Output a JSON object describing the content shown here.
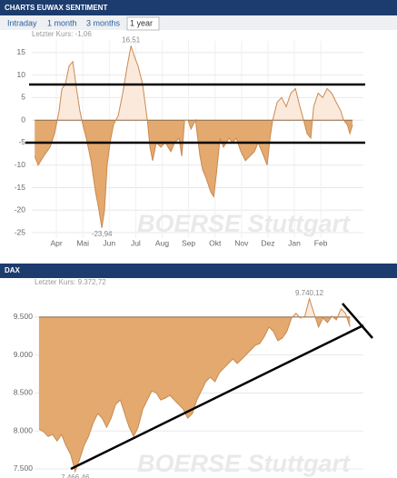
{
  "tabs": [
    "Intraday",
    "1 month",
    "3 months",
    "1 year"
  ],
  "active_tab": 3,
  "chart_data": [
    {
      "type": "area",
      "title": "CHARTS EUWAX SENTIMENT",
      "subtitle": "Letzter Kurs: -1,06",
      "watermark": "BOERSE Stuttgart",
      "color": "#c98a52",
      "fill_below": "#e3a96e",
      "fill_above": "#fbeadb",
      "fill_base": 0,
      "grid": true,
      "xlim": [
        3.07,
        15.61
      ],
      "ylim": [
        -26.2,
        17.6
      ],
      "yticks": [
        15,
        10,
        5,
        0,
        -5,
        -10,
        -15,
        -20,
        -25
      ],
      "xticks": [
        {
          "value": 4,
          "label": "Apr"
        },
        {
          "value": 5,
          "label": "Mai"
        },
        {
          "value": 6,
          "label": "Jun"
        },
        {
          "value": 7,
          "label": "Jul"
        },
        {
          "value": 8,
          "label": "Aug"
        },
        {
          "value": 9,
          "label": "Sep"
        },
        {
          "value": 10,
          "label": "Okt"
        },
        {
          "value": 11,
          "label": "Nov"
        },
        {
          "value": 12,
          "label": "Dez"
        },
        {
          "value": 13,
          "label": "Jan"
        },
        {
          "value": 14,
          "label": "Feb"
        }
      ],
      "max_label": "16,51",
      "min_label": "-23,94",
      "x": [
        3.18,
        3.31,
        3.52,
        3.76,
        3.93,
        4.1,
        4.21,
        4.34,
        4.48,
        4.62,
        4.76,
        4.89,
        5.0,
        5.13,
        5.31,
        5.48,
        5.58,
        5.72,
        5.82,
        5.92,
        6.03,
        6.16,
        6.34,
        6.51,
        6.68,
        6.82,
        6.96,
        7.09,
        7.26,
        7.44,
        7.54,
        7.64,
        7.78,
        7.95,
        8.12,
        8.33,
        8.47,
        8.64,
        8.74,
        8.85,
        8.98,
        9.09,
        9.26,
        9.43,
        9.53,
        9.67,
        9.84,
        9.95,
        10.05,
        10.19,
        10.32,
        10.53,
        10.67,
        10.8,
        10.98,
        11.15,
        11.32,
        11.49,
        11.63,
        11.84,
        11.97,
        12.08,
        12.18,
        12.35,
        12.52,
        12.69,
        12.87,
        13.04,
        13.21,
        13.35,
        13.48,
        13.62,
        13.73,
        13.9,
        14.07,
        14.24,
        14.41,
        14.58,
        14.76,
        14.86,
        15.0,
        15.1,
        15.2
      ],
      "values": [
        -8,
        -10,
        -8,
        -6,
        -3,
        2,
        7,
        8,
        12,
        13,
        7,
        2,
        -1,
        -4,
        -9,
        -16,
        -19,
        -23.94,
        -20,
        -10,
        -5,
        -1,
        1,
        6,
        12,
        16.51,
        14,
        12,
        8,
        0,
        -6,
        -9,
        -5,
        -6,
        -5,
        -7,
        -5,
        -4,
        -8,
        0,
        0,
        -2,
        0,
        -8,
        -11,
        -13,
        -16,
        -17,
        -12,
        -4,
        -6,
        -4,
        -5,
        -4,
        -7,
        -9,
        -8,
        -7,
        -5,
        -8,
        -10,
        -4,
        0,
        4,
        5,
        3,
        6,
        7,
        3,
        0,
        -3,
        -4,
        3,
        6,
        5,
        7,
        6,
        4,
        2,
        0,
        -1,
        -3,
        -1.06
      ]
    },
    {
      "type": "area",
      "title": "DAX",
      "subtitle": "Letzter Kurs: 9.372,72",
      "watermark": "BOERSE Stuttgart",
      "color": "#c98a52",
      "fill_below": "#e3a96e",
      "fill_above": "#fbeadb",
      "fill_base": 9500,
      "grid": true,
      "xlim": [
        3.07,
        15.61
      ],
      "ylim": [
        7380,
        9870
      ],
      "yticks": [
        {
          "value": 9500,
          "label": "9.500"
        },
        {
          "value": 9000,
          "label": "9.000"
        },
        {
          "value": 8500,
          "label": "8.500"
        },
        {
          "value": 8000,
          "label": "8.000"
        },
        {
          "value": 7500,
          "label": "7.500"
        }
      ],
      "max_label": "9.740,12",
      "min_label": "7.466,46",
      "x": [
        3.24,
        3.42,
        3.59,
        3.76,
        3.93,
        4.1,
        4.27,
        4.45,
        4.62,
        4.79,
        4.96,
        5.13,
        5.31,
        5.48,
        5.65,
        5.82,
        5.99,
        6.16,
        6.34,
        6.51,
        6.68,
        6.85,
        7.02,
        7.2,
        7.37,
        7.54,
        7.71,
        7.88,
        8.05,
        8.23,
        8.4,
        8.57,
        8.74,
        8.91,
        9.09,
        9.26,
        9.43,
        9.6,
        9.77,
        9.95,
        10.12,
        10.29,
        10.46,
        10.63,
        10.8,
        10.98,
        11.15,
        11.32,
        11.49,
        11.66,
        11.84,
        12.01,
        12.18,
        12.35,
        12.52,
        12.69,
        12.87,
        13.04,
        13.21,
        13.38,
        13.55,
        13.73,
        13.9,
        14.07,
        14.24,
        14.41,
        14.58,
        14.76,
        14.93,
        15.1
      ],
      "values": [
        8024,
        7988,
        7928,
        7952,
        7868,
        7952,
        7808,
        7688,
        7466.46,
        7628,
        7808,
        7928,
        8108,
        8228,
        8168,
        8048,
        8168,
        8348,
        8408,
        8228,
        8048,
        7928,
        8048,
        8288,
        8408,
        8528,
        8504,
        8408,
        8432,
        8468,
        8408,
        8348,
        8288,
        8168,
        8228,
        8408,
        8528,
        8648,
        8708,
        8648,
        8768,
        8828,
        8888,
        8948,
        8888,
        8948,
        9008,
        9068,
        9128,
        9152,
        9248,
        9368,
        9308,
        9188,
        9224,
        9308,
        9488,
        9548,
        9488,
        9512,
        9740.12,
        9548,
        9368,
        9488,
        9428,
        9512,
        9464,
        9608,
        9548,
        9372.72
      ]
    }
  ]
}
